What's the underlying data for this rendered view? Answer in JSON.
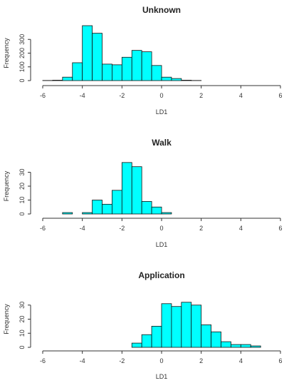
{
  "chart_data": [
    {
      "type": "bar",
      "title": "Unknown",
      "xlabel": "LD1",
      "ylabel": "Frequency",
      "xlim": [
        -6,
        6
      ],
      "xticks": [
        -6,
        -4,
        -2,
        0,
        2,
        4,
        6
      ],
      "yticks": [
        0,
        100,
        200,
        300
      ],
      "ylim": [
        0,
        400
      ],
      "bin_width": 0.5,
      "bins": [
        {
          "start": -6.0,
          "value": 1
        },
        {
          "start": -5.5,
          "value": 3
        },
        {
          "start": -5.0,
          "value": 25
        },
        {
          "start": -4.5,
          "value": 130
        },
        {
          "start": -4.0,
          "value": 400
        },
        {
          "start": -3.5,
          "value": 345
        },
        {
          "start": -3.0,
          "value": 120
        },
        {
          "start": -2.5,
          "value": 115
        },
        {
          "start": -2.0,
          "value": 170
        },
        {
          "start": -1.5,
          "value": 220
        },
        {
          "start": -1.0,
          "value": 210
        },
        {
          "start": -0.5,
          "value": 110
        },
        {
          "start": 0.0,
          "value": 25
        },
        {
          "start": 0.5,
          "value": 15
        },
        {
          "start": 1.0,
          "value": 3
        },
        {
          "start": 1.5,
          "value": 1
        }
      ]
    },
    {
      "type": "bar",
      "title": "Walk",
      "xlabel": "LD1",
      "ylabel": "Frequency",
      "xlim": [
        -6,
        6
      ],
      "xticks": [
        -6,
        -4,
        -2,
        0,
        2,
        4,
        6
      ],
      "yticks": [
        0,
        10,
        20,
        30
      ],
      "ylim": [
        0,
        40
      ],
      "bin_width": 0.5,
      "bins": [
        {
          "start": -5.0,
          "value": 1
        },
        {
          "start": -4.5,
          "value": 0
        },
        {
          "start": -4.0,
          "value": 1
        },
        {
          "start": -3.5,
          "value": 10
        },
        {
          "start": -3.0,
          "value": 7
        },
        {
          "start": -2.5,
          "value": 17
        },
        {
          "start": -2.0,
          "value": 37
        },
        {
          "start": -1.5,
          "value": 34
        },
        {
          "start": -1.0,
          "value": 9
        },
        {
          "start": -0.5,
          "value": 5
        },
        {
          "start": 0.0,
          "value": 1
        }
      ]
    },
    {
      "type": "bar",
      "title": "Application",
      "xlabel": "LD1",
      "ylabel": "Frequency",
      "xlim": [
        -6,
        6
      ],
      "xticks": [
        -6,
        -4,
        -2,
        0,
        2,
        4,
        6
      ],
      "yticks": [
        0,
        10,
        20,
        30
      ],
      "ylim": [
        0,
        40
      ],
      "bin_width": 0.5,
      "bins": [
        {
          "start": -1.5,
          "value": 3
        },
        {
          "start": -1.0,
          "value": 9
        },
        {
          "start": -0.5,
          "value": 15
        },
        {
          "start": 0.0,
          "value": 31
        },
        {
          "start": 0.5,
          "value": 29
        },
        {
          "start": 1.0,
          "value": 32
        },
        {
          "start": 1.5,
          "value": 30
        },
        {
          "start": 2.0,
          "value": 16
        },
        {
          "start": 2.5,
          "value": 11
        },
        {
          "start": 3.0,
          "value": 4
        },
        {
          "start": 3.5,
          "value": 2
        },
        {
          "start": 4.0,
          "value": 2
        },
        {
          "start": 4.5,
          "value": 1
        }
      ]
    }
  ],
  "colors": {
    "bar_fill": "#00FFFF",
    "bar_stroke": "#111111",
    "axis": "#333333",
    "title_text": "#222222"
  }
}
